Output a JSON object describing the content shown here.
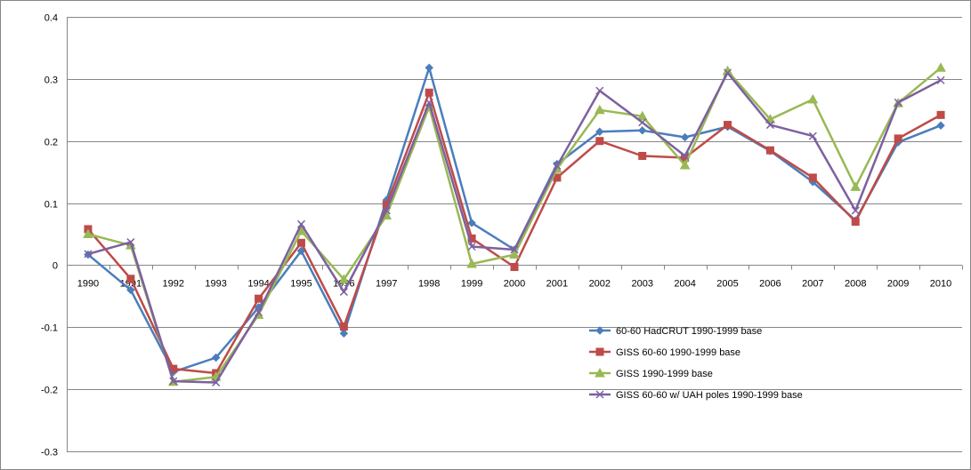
{
  "chart_data": {
    "type": "line",
    "title": "",
    "xlabel": "",
    "ylabel": "",
    "categories": [
      "1990",
      "1991",
      "1992",
      "1993",
      "1994",
      "1995",
      "1996",
      "1997",
      "1998",
      "1999",
      "2000",
      "2001",
      "2002",
      "2003",
      "2004",
      "2005",
      "2006",
      "2007",
      "2008",
      "2009",
      "2010"
    ],
    "ylim": [
      -0.3,
      0.4
    ],
    "yticks": [
      -0.3,
      -0.2,
      -0.1,
      0,
      0.1,
      0.2,
      0.3,
      0.4
    ],
    "ytick_labels": [
      "-0.3",
      "-0.2",
      "-0.1",
      "0",
      "0.1",
      "0.2",
      "0.3",
      "0.4"
    ],
    "grid": "horizontal",
    "legend_position": "lower-center",
    "series": [
      {
        "name": "60-60 HadCRUT 1990-1999 base",
        "color": "#4A7EBB",
        "marker": "diamond",
        "values": [
          0.017,
          -0.04,
          -0.172,
          -0.149,
          -0.068,
          0.023,
          -0.11,
          0.105,
          0.318,
          0.068,
          0.025,
          0.163,
          0.215,
          0.217,
          0.206,
          0.223,
          0.184,
          0.134,
          0.072,
          0.198,
          0.225
        ]
      },
      {
        "name": "GISS 60-60 1990-1999 base",
        "color": "#BE4B48",
        "marker": "square",
        "values": [
          0.058,
          -0.022,
          -0.167,
          -0.174,
          -0.054,
          0.036,
          -0.099,
          0.097,
          0.278,
          0.043,
          -0.003,
          0.141,
          0.2,
          0.176,
          0.173,
          0.226,
          0.185,
          0.141,
          0.07,
          0.204,
          0.242
        ]
      },
      {
        "name": "GISS 1990-1999 base",
        "color": "#98B954",
        "marker": "triangle",
        "values": [
          0.05,
          0.032,
          -0.188,
          -0.18,
          -0.08,
          0.055,
          -0.023,
          0.08,
          0.255,
          0.002,
          0.017,
          0.155,
          0.25,
          0.24,
          0.161,
          0.313,
          0.235,
          0.267,
          0.126,
          0.261,
          0.318
        ]
      },
      {
        "name": "GISS 60-60 w/ UAH poles 1990-1999 base",
        "color": "#7D60A0",
        "marker": "x",
        "values": [
          0.018,
          0.037,
          -0.187,
          -0.189,
          -0.076,
          0.066,
          -0.043,
          0.088,
          0.262,
          0.03,
          0.025,
          0.16,
          0.281,
          0.23,
          0.176,
          0.31,
          0.226,
          0.208,
          0.088,
          0.262,
          0.298
        ]
      }
    ]
  }
}
